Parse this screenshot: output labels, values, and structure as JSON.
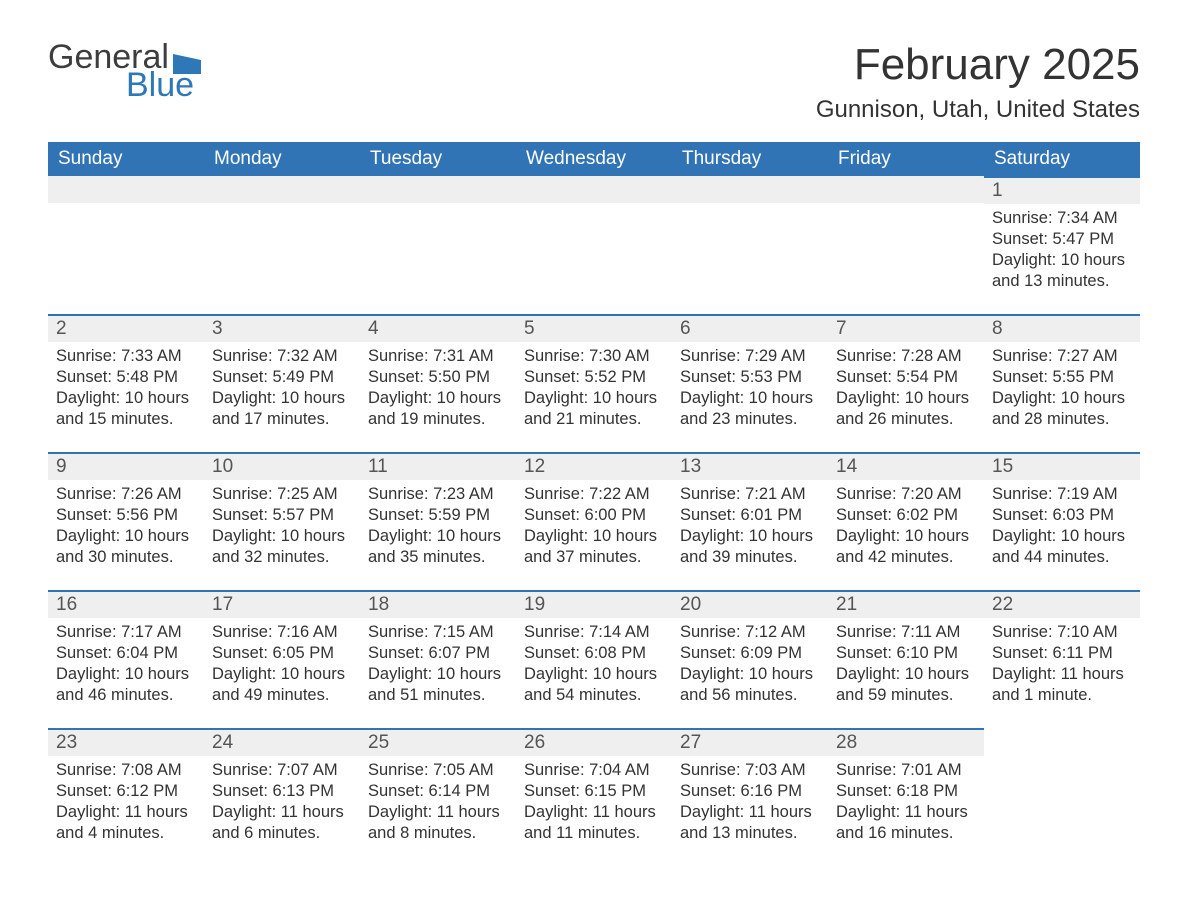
{
  "logo": {
    "word1": "General",
    "word2": "Blue",
    "flag_color": "#2f78b7",
    "text_gray": "#3d3d3d"
  },
  "title": "February 2025",
  "location": "Gunnison, Utah, United States",
  "colors": {
    "header_bg": "#3174b5",
    "header_text": "#ffffff",
    "daynum_bg": "#efefef",
    "border": "#3174b5",
    "body_text": "#333333"
  },
  "weekdays": [
    "Sunday",
    "Monday",
    "Tuesday",
    "Wednesday",
    "Thursday",
    "Friday",
    "Saturday"
  ],
  "weeks": [
    [
      null,
      null,
      null,
      null,
      null,
      null,
      {
        "n": "1",
        "sunrise": "Sunrise: 7:34 AM",
        "sunset": "Sunset: 5:47 PM",
        "daylight": "Daylight: 10 hours and 13 minutes."
      }
    ],
    [
      {
        "n": "2",
        "sunrise": "Sunrise: 7:33 AM",
        "sunset": "Sunset: 5:48 PM",
        "daylight": "Daylight: 10 hours and 15 minutes."
      },
      {
        "n": "3",
        "sunrise": "Sunrise: 7:32 AM",
        "sunset": "Sunset: 5:49 PM",
        "daylight": "Daylight: 10 hours and 17 minutes."
      },
      {
        "n": "4",
        "sunrise": "Sunrise: 7:31 AM",
        "sunset": "Sunset: 5:50 PM",
        "daylight": "Daylight: 10 hours and 19 minutes."
      },
      {
        "n": "5",
        "sunrise": "Sunrise: 7:30 AM",
        "sunset": "Sunset: 5:52 PM",
        "daylight": "Daylight: 10 hours and 21 minutes."
      },
      {
        "n": "6",
        "sunrise": "Sunrise: 7:29 AM",
        "sunset": "Sunset: 5:53 PM",
        "daylight": "Daylight: 10 hours and 23 minutes."
      },
      {
        "n": "7",
        "sunrise": "Sunrise: 7:28 AM",
        "sunset": "Sunset: 5:54 PM",
        "daylight": "Daylight: 10 hours and 26 minutes."
      },
      {
        "n": "8",
        "sunrise": "Sunrise: 7:27 AM",
        "sunset": "Sunset: 5:55 PM",
        "daylight": "Daylight: 10 hours and 28 minutes."
      }
    ],
    [
      {
        "n": "9",
        "sunrise": "Sunrise: 7:26 AM",
        "sunset": "Sunset: 5:56 PM",
        "daylight": "Daylight: 10 hours and 30 minutes."
      },
      {
        "n": "10",
        "sunrise": "Sunrise: 7:25 AM",
        "sunset": "Sunset: 5:57 PM",
        "daylight": "Daylight: 10 hours and 32 minutes."
      },
      {
        "n": "11",
        "sunrise": "Sunrise: 7:23 AM",
        "sunset": "Sunset: 5:59 PM",
        "daylight": "Daylight: 10 hours and 35 minutes."
      },
      {
        "n": "12",
        "sunrise": "Sunrise: 7:22 AM",
        "sunset": "Sunset: 6:00 PM",
        "daylight": "Daylight: 10 hours and 37 minutes."
      },
      {
        "n": "13",
        "sunrise": "Sunrise: 7:21 AM",
        "sunset": "Sunset: 6:01 PM",
        "daylight": "Daylight: 10 hours and 39 minutes."
      },
      {
        "n": "14",
        "sunrise": "Sunrise: 7:20 AM",
        "sunset": "Sunset: 6:02 PM",
        "daylight": "Daylight: 10 hours and 42 minutes."
      },
      {
        "n": "15",
        "sunrise": "Sunrise: 7:19 AM",
        "sunset": "Sunset: 6:03 PM",
        "daylight": "Daylight: 10 hours and 44 minutes."
      }
    ],
    [
      {
        "n": "16",
        "sunrise": "Sunrise: 7:17 AM",
        "sunset": "Sunset: 6:04 PM",
        "daylight": "Daylight: 10 hours and 46 minutes."
      },
      {
        "n": "17",
        "sunrise": "Sunrise: 7:16 AM",
        "sunset": "Sunset: 6:05 PM",
        "daylight": "Daylight: 10 hours and 49 minutes."
      },
      {
        "n": "18",
        "sunrise": "Sunrise: 7:15 AM",
        "sunset": "Sunset: 6:07 PM",
        "daylight": "Daylight: 10 hours and 51 minutes."
      },
      {
        "n": "19",
        "sunrise": "Sunrise: 7:14 AM",
        "sunset": "Sunset: 6:08 PM",
        "daylight": "Daylight: 10 hours and 54 minutes."
      },
      {
        "n": "20",
        "sunrise": "Sunrise: 7:12 AM",
        "sunset": "Sunset: 6:09 PM",
        "daylight": "Daylight: 10 hours and 56 minutes."
      },
      {
        "n": "21",
        "sunrise": "Sunrise: 7:11 AM",
        "sunset": "Sunset: 6:10 PM",
        "daylight": "Daylight: 10 hours and 59 minutes."
      },
      {
        "n": "22",
        "sunrise": "Sunrise: 7:10 AM",
        "sunset": "Sunset: 6:11 PM",
        "daylight": "Daylight: 11 hours and 1 minute."
      }
    ],
    [
      {
        "n": "23",
        "sunrise": "Sunrise: 7:08 AM",
        "sunset": "Sunset: 6:12 PM",
        "daylight": "Daylight: 11 hours and 4 minutes."
      },
      {
        "n": "24",
        "sunrise": "Sunrise: 7:07 AM",
        "sunset": "Sunset: 6:13 PM",
        "daylight": "Daylight: 11 hours and 6 minutes."
      },
      {
        "n": "25",
        "sunrise": "Sunrise: 7:05 AM",
        "sunset": "Sunset: 6:14 PM",
        "daylight": "Daylight: 11 hours and 8 minutes."
      },
      {
        "n": "26",
        "sunrise": "Sunrise: 7:04 AM",
        "sunset": "Sunset: 6:15 PM",
        "daylight": "Daylight: 11 hours and 11 minutes."
      },
      {
        "n": "27",
        "sunrise": "Sunrise: 7:03 AM",
        "sunset": "Sunset: 6:16 PM",
        "daylight": "Daylight: 11 hours and 13 minutes."
      },
      {
        "n": "28",
        "sunrise": "Sunrise: 7:01 AM",
        "sunset": "Sunset: 6:18 PM",
        "daylight": "Daylight: 11 hours and 16 minutes."
      },
      null
    ]
  ]
}
